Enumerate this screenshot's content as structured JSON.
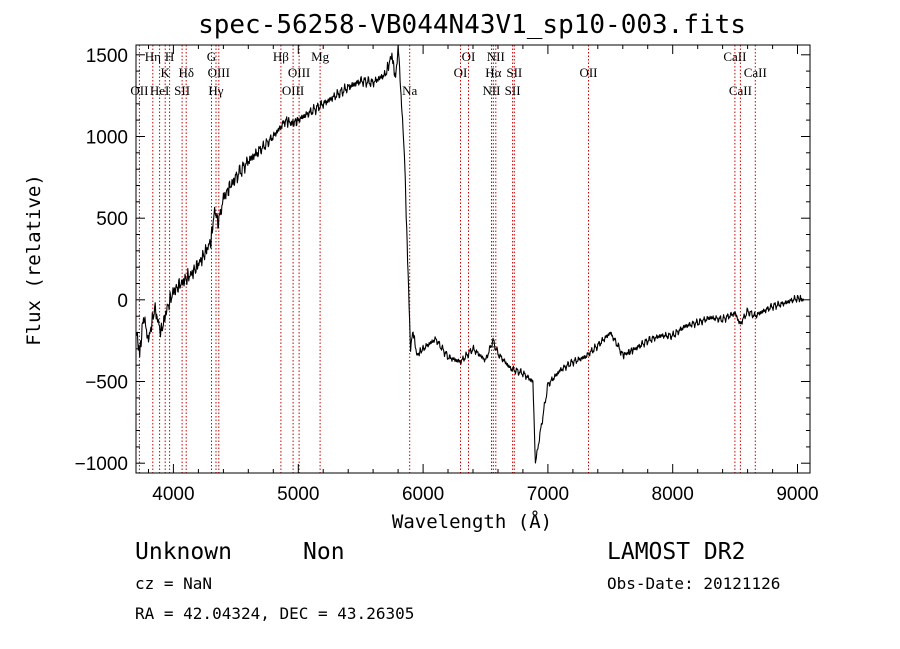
{
  "chart_data": {
    "type": "line",
    "title": "spec-56258-VB044N43V1_sp10-003.fits",
    "xlabel": "Wavelength (Å)",
    "ylabel": "Flux (relative)",
    "xlim": [
      3700,
      9100
    ],
    "ylim": [
      -1060,
      1560
    ],
    "x_ticks": [
      4000,
      5000,
      6000,
      7000,
      8000,
      9000
    ],
    "x_tick_labels": [
      "4000",
      "5000",
      "6000",
      "7000",
      "8000",
      "9000"
    ],
    "y_ticks": [
      -1000,
      -500,
      0,
      500,
      1000,
      1500
    ],
    "y_tick_labels": [
      "−1000",
      "−500",
      "0",
      "500",
      "1000",
      "1500"
    ],
    "grid": false,
    "series": [
      {
        "color": "#000000",
        "x": [
          3700,
          3730,
          3760,
          3800,
          3850,
          3900,
          3950,
          4000,
          4050,
          4100,
          4150,
          4200,
          4250,
          4300,
          4330,
          4360,
          4400,
          4450,
          4500,
          4600,
          4700,
          4800,
          4860,
          4900,
          4950,
          5000,
          5100,
          5200,
          5300,
          5400,
          5500,
          5600,
          5700,
          5750,
          5780,
          5800,
          5820,
          5850,
          5880,
          5900,
          5920,
          5950,
          6000,
          6100,
          6200,
          6300,
          6400,
          6500,
          6560,
          6600,
          6700,
          6800,
          6880,
          6900,
          7000,
          7100,
          7200,
          7300,
          7400,
          7500,
          7560,
          7600,
          7650,
          7700,
          7800,
          7900,
          8000,
          8100,
          8200,
          8300,
          8400,
          8500,
          8540,
          8600,
          8660,
          8700,
          8800,
          8900,
          9000,
          9050
        ],
        "y": [
          -180,
          -330,
          -100,
          -250,
          -50,
          -200,
          -50,
          50,
          90,
          130,
          160,
          220,
          280,
          360,
          550,
          470,
          620,
          690,
          750,
          850,
          920,
          1000,
          1060,
          1100,
          1080,
          1100,
          1150,
          1200,
          1250,
          1300,
          1340,
          1330,
          1380,
          1500,
          1350,
          1560,
          1300,
          900,
          150,
          -300,
          -190,
          -340,
          -300,
          -240,
          -350,
          -380,
          -300,
          -370,
          -250,
          -330,
          -420,
          -450,
          -500,
          -1000,
          -520,
          -430,
          -380,
          -350,
          -280,
          -200,
          -280,
          -340,
          -320,
          -300,
          -250,
          -220,
          -220,
          -160,
          -140,
          -110,
          -120,
          -80,
          -150,
          -70,
          -100,
          -80,
          -40,
          -20,
          10,
          0
        ]
      }
    ],
    "lines": [
      {
        "label": "OII",
        "x": 3727,
        "row": 2
      },
      {
        "label": "Hη",
        "x": 3835,
        "row": 0
      },
      {
        "label": "H",
        "x": 3969,
        "row": 0
      },
      {
        "label": "K",
        "x": 3934,
        "row": 1
      },
      {
        "label": "HeI",
        "x": 3889,
        "row": 2
      },
      {
        "label": "SII",
        "x": 4069,
        "row": 2
      },
      {
        "label": "Hδ",
        "x": 4102,
        "row": 1
      },
      {
        "label": "G",
        "x": 4305,
        "row": 0
      },
      {
        "label": "OIII",
        "x": 4363,
        "row": 1
      },
      {
        "label": "Hγ",
        "x": 4341,
        "row": 2
      },
      {
        "label": "Hβ",
        "x": 4861,
        "row": 0
      },
      {
        "label": "OIII",
        "x": 5007,
        "row": 1
      },
      {
        "label": "OIII",
        "x": 4959,
        "row": 2
      },
      {
        "label": "Mg",
        "x": 5175,
        "row": 0
      },
      {
        "label": "Na",
        "x": 5893,
        "row": 2
      },
      {
        "label": "OI",
        "x": 6364,
        "row": 0
      },
      {
        "label": "OI",
        "x": 6300,
        "row": 1
      },
      {
        "label": "NII",
        "x": 6583,
        "row": 0
      },
      {
        "label": "Hα",
        "x": 6563,
        "row": 1
      },
      {
        "label": "NII",
        "x": 6548,
        "row": 2
      },
      {
        "label": "SII",
        "x": 6731,
        "row": 1
      },
      {
        "label": "SII",
        "x": 6717,
        "row": 2
      },
      {
        "label": "OII",
        "x": 7325,
        "row": 1
      },
      {
        "label": "CaII",
        "x": 8498,
        "row": 0
      },
      {
        "label": "CaII",
        "x": 8662,
        "row": 1
      },
      {
        "label": "CaII",
        "x": 8542,
        "row": 2
      }
    ],
    "line_positions": [
      3727,
      3835,
      3889,
      3934,
      3969,
      4069,
      4102,
      4305,
      4341,
      4363,
      4861,
      4959,
      5007,
      5175,
      5893,
      6300,
      6364,
      6548,
      6563,
      6583,
      6717,
      6731,
      7325,
      8498,
      8542,
      8662
    ],
    "line_color": "#cc0000"
  },
  "info": {
    "class": "Unknown",
    "subclass": "Non",
    "survey": "LAMOST DR2",
    "cz": "cz = NaN",
    "obs_date": "Obs-Date: 20121126",
    "coords": "RA =  42.04324, DEC =  43.26305"
  }
}
